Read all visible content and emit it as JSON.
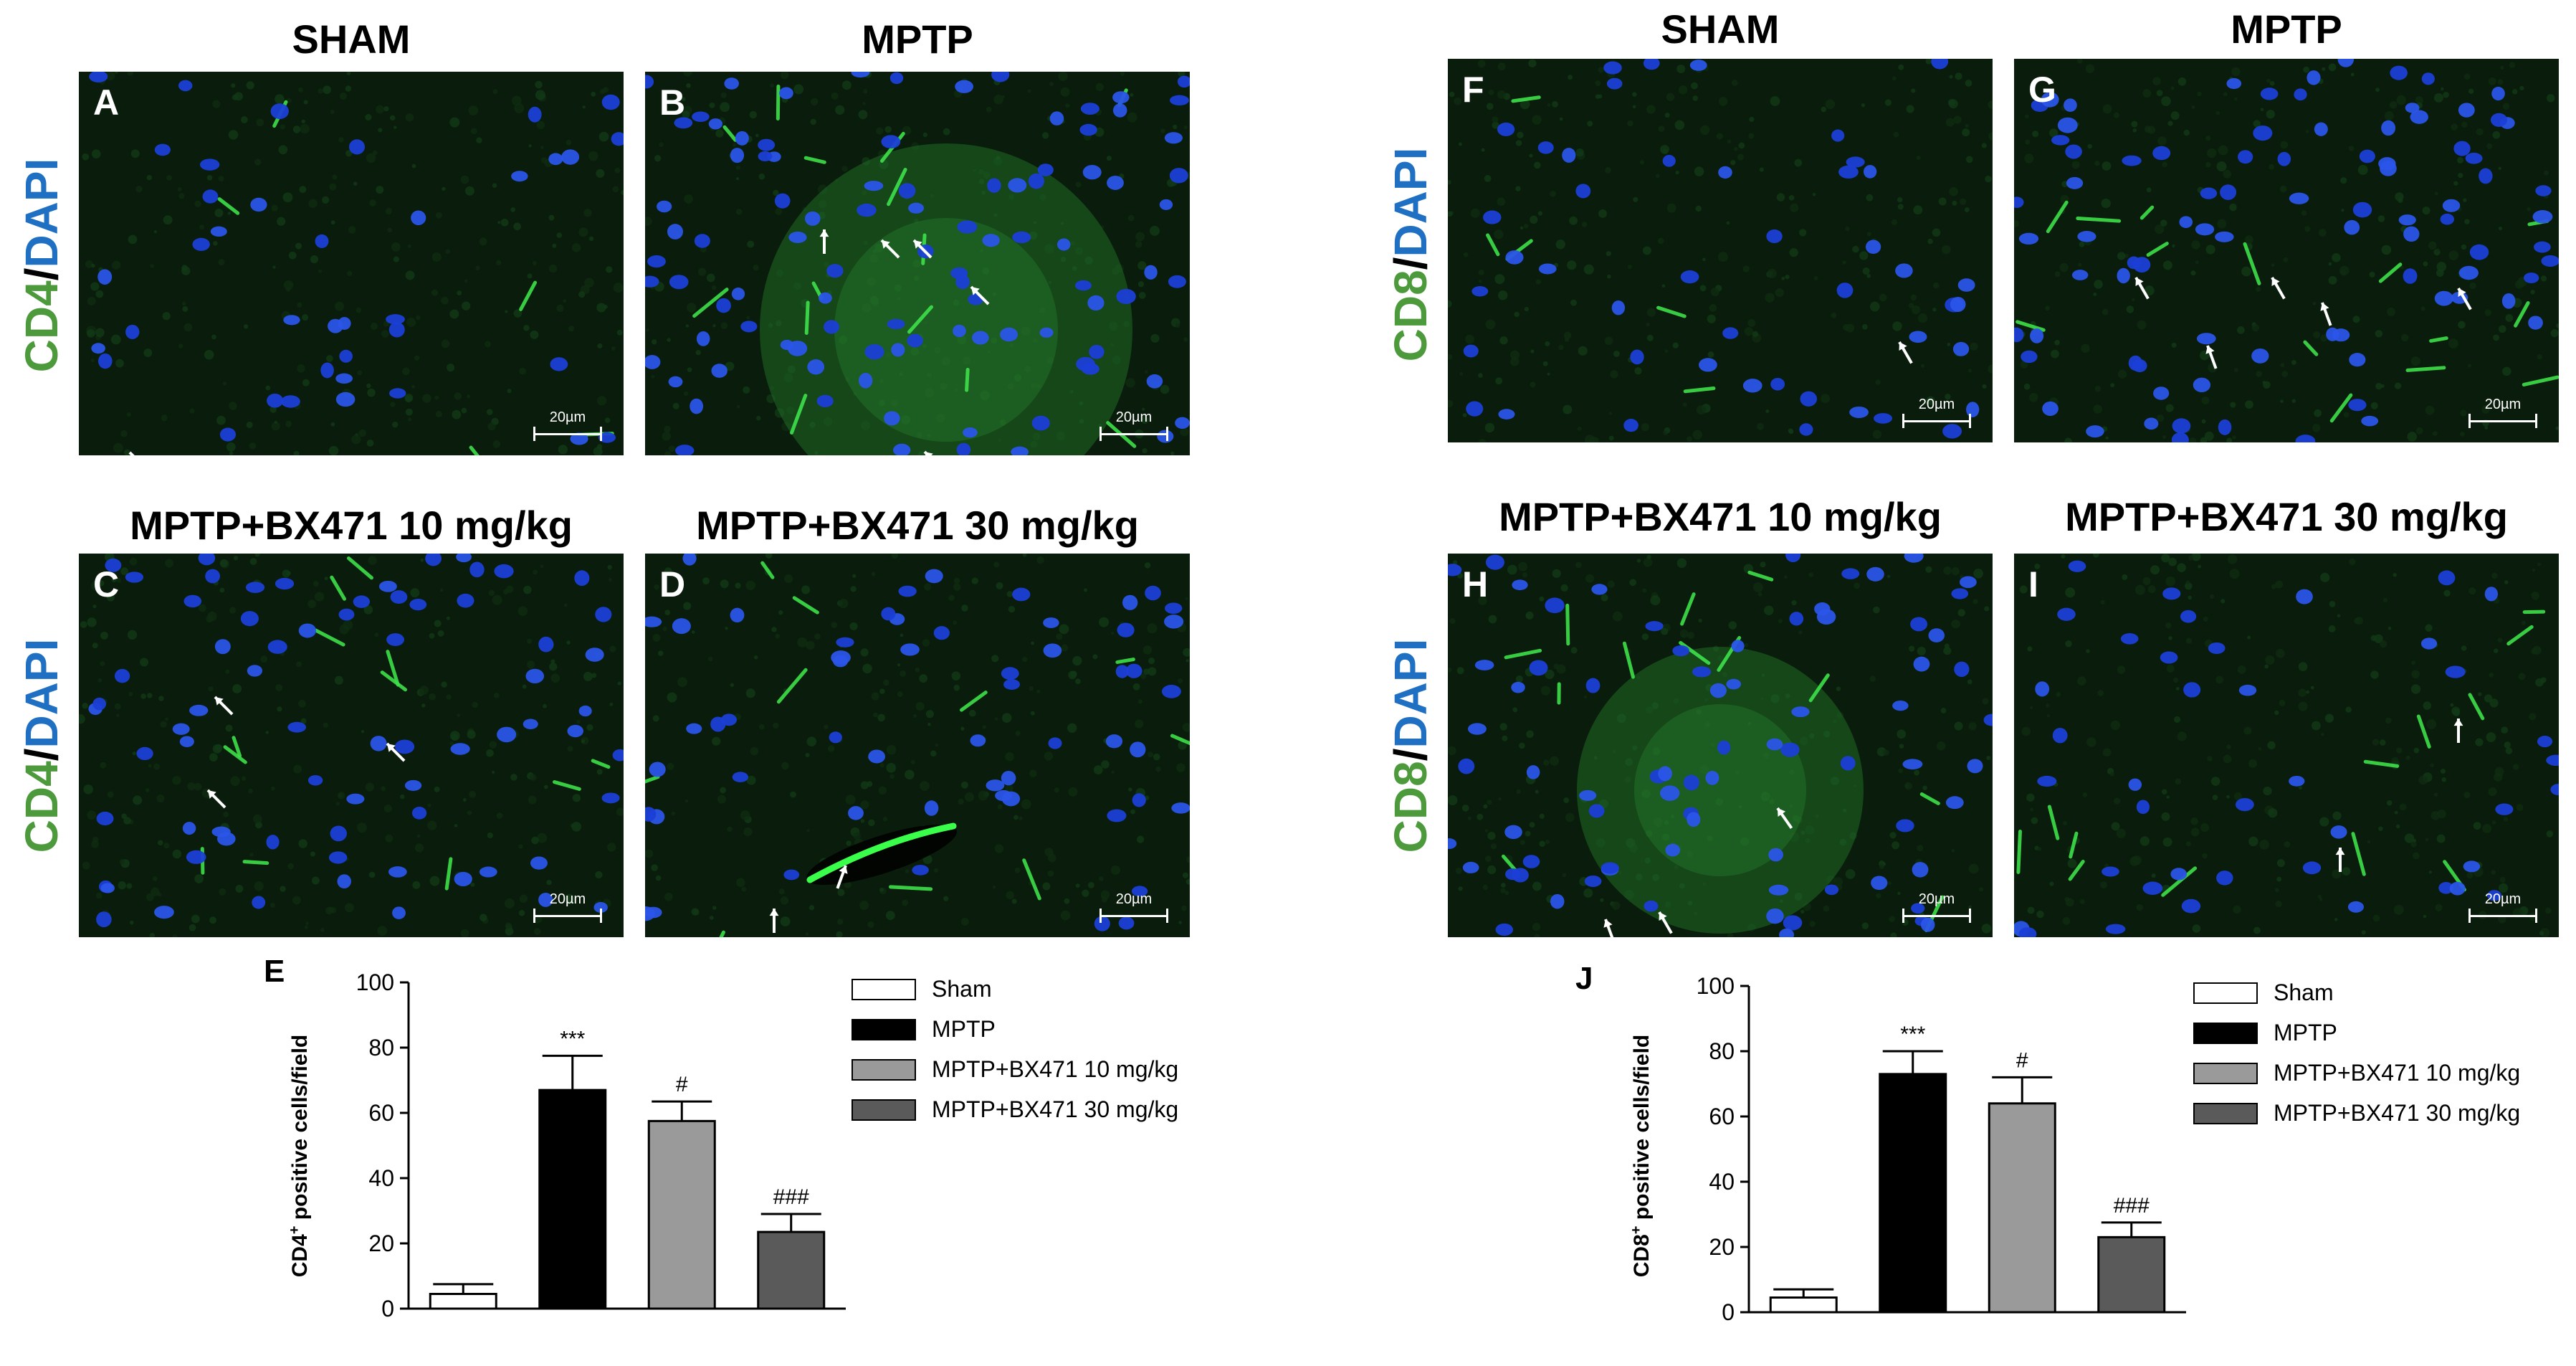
{
  "figure": {
    "titles": {
      "A": "SHAM",
      "B": "MPTP",
      "C": "MPTP+BX471 10 mg/kg",
      "D": "MPTP+BX471 30 mg/kg",
      "F": "SHAM",
      "G": "MPTP",
      "H": "MPTP+BX471 10 mg/kg",
      "I": "MPTP+BX471 30 mg/kg"
    },
    "panel_letters": {
      "A": "A",
      "B": "B",
      "C": "C",
      "D": "D",
      "F": "F",
      "G": "G",
      "H": "H",
      "I": "I"
    },
    "scale_bar": "20µm",
    "stain_labels": {
      "cd4": {
        "marker": "CD4",
        "slash": "/",
        "dapi": "DAPI"
      },
      "cd8": {
        "marker": "CD8",
        "slash": "/",
        "dapi": "DAPI"
      }
    },
    "colors": {
      "marker_green": "#4c9a3c",
      "dapi_blue": "#1f6fc2",
      "tissue_bg": "#061406"
    }
  },
  "chart_data": [
    {
      "type": "bar",
      "panel": "E",
      "ylabel": "CD4⁺ positive cells/field",
      "ylabel_main": "CD4",
      "ylabel_sup": "+",
      "ylabel_rest": " positive cells/field",
      "ylim": [
        0,
        100
      ],
      "yticks": [
        0,
        20,
        40,
        60,
        80,
        100
      ],
      "categories": [
        "Sham",
        "MPTP",
        "MPTP+BX471 10 mg/kg",
        "MPTP+BX471 30 mg/kg"
      ],
      "values": [
        4.5,
        67,
        57.5,
        23.5
      ],
      "errors": [
        3,
        10.5,
        6,
        5.5
      ],
      "annotations": [
        "",
        "***",
        "#",
        "###"
      ],
      "bar_colors": [
        "#ffffff",
        "#000000",
        "#9a9a9a",
        "#5a5a5a"
      ],
      "legend": [
        "Sham",
        "MPTP",
        "MPTP+BX471 10 mg/kg",
        "MPTP+BX471 30 mg/kg"
      ]
    },
    {
      "type": "bar",
      "panel": "J",
      "ylabel": "CD8⁺ positive cells/field",
      "ylabel_main": "CD8",
      "ylabel_sup": "+",
      "ylabel_rest": " positive cells/field",
      "ylim": [
        0,
        100
      ],
      "yticks": [
        0,
        20,
        40,
        60,
        80,
        100
      ],
      "categories": [
        "Sham",
        "MPTP",
        "MPTP+BX471 10 mg/kg",
        "MPTP+BX471 30 mg/kg"
      ],
      "values": [
        4.5,
        73,
        64,
        23
      ],
      "errors": [
        2.5,
        7,
        8,
        4.5
      ],
      "annotations": [
        "",
        "***",
        "#",
        "###"
      ],
      "bar_colors": [
        "#ffffff",
        "#000000",
        "#9a9a9a",
        "#5a5a5a"
      ],
      "legend": [
        "Sham",
        "MPTP",
        "MPTP+BX471 10 mg/kg",
        "MPTP+BX471 30 mg/kg"
      ]
    }
  ]
}
